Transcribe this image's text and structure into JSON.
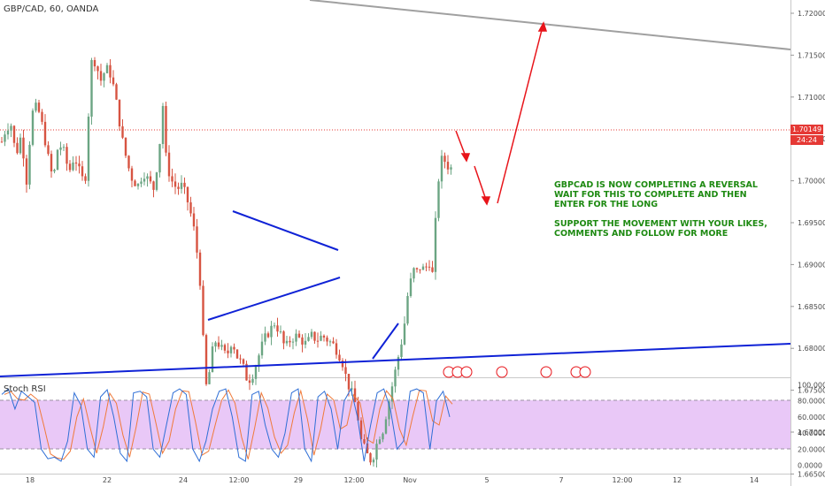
{
  "header": {
    "symbol_title": "GBP/CAD, 60, OANDA"
  },
  "oscillator": {
    "label": "Stoch RSI"
  },
  "annotation": {
    "line1": "GBPCAD IS NOW COMPLETING A REVERSAL",
    "line2": "WAIT FOR THIS TO COMPLETE AND THEN",
    "line3": "ENTER FOR THE LONG",
    "line4": "SUPPORT THE MOVEMENT WITH YOUR LIKES,",
    "line5": "COMMENTS AND FOLLOW FOR MORE"
  },
  "price_tags": {
    "last_price": "1.70149",
    "countdown": "24:24"
  },
  "colors": {
    "up_candle": "#6ba583",
    "down_candle": "#d75442",
    "trendline": "#0f22d6",
    "resistance_line": "#a0a0a0",
    "arrow": "#e8141a",
    "annotation_text": "#1e8a12",
    "stoch_k": "#2f6fd6",
    "stoch_d": "#f07a3a",
    "stoch_band": "#e9c8f7",
    "price_tag_bg": "#e53935"
  },
  "chart_data": [
    {
      "type": "candlestick",
      "title": "GBP/CAD, 60, OANDA",
      "y_axis": {
        "ticks": [
          "1.72000",
          "1.71500",
          "1.71000",
          "1.70500",
          "1.70000",
          "1.69500",
          "1.69000",
          "1.68500",
          "1.68000",
          "1.67500",
          "1.67000",
          "1.66500"
        ],
        "range": [
          1.6635,
          1.722
        ],
        "side": "right"
      },
      "x_axis": {
        "ticks": [
          "18",
          "22",
          "24",
          "12:00",
          "29",
          "12:00",
          "Nov",
          "5",
          "7",
          "12:00",
          "12",
          "14"
        ]
      },
      "last_price": 1.70149,
      "price_path": [
        [
          0,
          1.704
        ],
        [
          6,
          1.706
        ],
        [
          12,
          1.707
        ],
        [
          18,
          1.703
        ],
        [
          24,
          1.7055
        ],
        [
          30,
          1.7
        ],
        [
          36,
          1.708
        ],
        [
          42,
          1.709
        ],
        [
          48,
          1.7065
        ],
        [
          54,
          1.703
        ],
        [
          60,
          1.7
        ],
        [
          66,
          1.7045
        ],
        [
          72,
          1.7035
        ],
        [
          78,
          1.701
        ],
        [
          84,
          1.703
        ],
        [
          90,
          1.701
        ],
        [
          96,
          1.6995
        ],
        [
          100,
          1.708
        ],
        [
          104,
          1.715
        ],
        [
          108,
          1.714
        ],
        [
          114,
          1.712
        ],
        [
          120,
          1.7135
        ],
        [
          126,
          1.7125
        ],
        [
          132,
          1.709
        ],
        [
          138,
          1.705
        ],
        [
          144,
          1.702
        ],
        [
          150,
          1.7
        ],
        [
          156,
          1.6995
        ],
        [
          162,
          1.701
        ],
        [
          168,
          1.7
        ],
        [
          174,
          1.699
        ],
        [
          180,
          1.704
        ],
        [
          184,
          1.709
        ],
        [
          188,
          1.702
        ],
        [
          194,
          1.7
        ],
        [
          200,
          1.699
        ],
        [
          206,
          1.6995
        ],
        [
          212,
          1.6975
        ],
        [
          218,
          1.695
        ],
        [
          222,
          1.692
        ],
        [
          226,
          1.688
        ],
        [
          230,
          1.68
        ],
        [
          234,
          1.674
        ],
        [
          238,
          1.679
        ],
        [
          244,
          1.681
        ],
        [
          250,
          1.68
        ],
        [
          256,
          1.679
        ],
        [
          262,
          1.681
        ],
        [
          268,
          1.679
        ],
        [
          274,
          1.678
        ],
        [
          280,
          1.676
        ],
        [
          286,
          1.677
        ],
        [
          292,
          1.679
        ],
        [
          298,
          1.681
        ],
        [
          304,
          1.682
        ],
        [
          310,
          1.683
        ],
        [
          316,
          1.682
        ],
        [
          322,
          1.68
        ],
        [
          328,
          1.681
        ],
        [
          334,
          1.6815
        ],
        [
          340,
          1.681
        ],
        [
          346,
          1.6805
        ],
        [
          352,
          1.6815
        ],
        [
          358,
          1.681
        ],
        [
          364,
          1.6815
        ],
        [
          370,
          1.681
        ],
        [
          376,
          1.6805
        ],
        [
          382,
          1.6795
        ],
        [
          388,
          1.678
        ],
        [
          392,
          1.676
        ],
        [
          396,
          1.675
        ],
        [
          400,
          1.674
        ],
        [
          404,
          1.672
        ],
        [
          408,
          1.669
        ],
        [
          412,
          1.668
        ],
        [
          416,
          1.667
        ],
        [
          420,
          1.6665
        ],
        [
          424,
          1.668
        ],
        [
          428,
          1.6695
        ],
        [
          432,
          1.67
        ],
        [
          436,
          1.672
        ],
        [
          440,
          1.674
        ],
        [
          444,
          1.676
        ],
        [
          448,
          1.678
        ],
        [
          452,
          1.68
        ],
        [
          456,
          1.682
        ],
        [
          460,
          1.686
        ],
        [
          464,
          1.688
        ],
        [
          468,
          1.6895
        ],
        [
          472,
          1.689
        ],
        [
          476,
          1.69
        ],
        [
          480,
          1.689
        ],
        [
          484,
          1.691
        ],
        [
          488,
          1.688
        ],
        [
          492,
          1.695
        ],
        [
          496,
          1.701
        ],
        [
          500,
          1.703
        ],
        [
          504,
          1.702
        ],
        [
          508,
          1.7015
        ]
      ]
    },
    {
      "type": "line",
      "title": "Stoch RSI",
      "y_axis": {
        "ticks": [
          "100.0000",
          "80.0000",
          "60.0000",
          "40.0000",
          "20.0000",
          "0.0000"
        ],
        "range": [
          0,
          100
        ]
      },
      "bands": [
        20,
        80
      ],
      "series": [
        {
          "values": [
            88,
            95,
            70,
            92,
            85,
            78,
            20,
            8,
            10,
            5,
            30,
            90,
            75,
            20,
            10,
            85,
            94,
            60,
            15,
            5,
            90,
            92,
            85,
            20,
            10,
            50,
            90,
            95,
            88,
            20,
            5,
            30,
            70,
            92,
            95,
            60,
            10,
            5,
            88,
            92,
            50,
            20,
            10,
            40,
            90,
            95,
            20,
            5,
            85,
            92,
            70,
            20,
            80,
            95,
            60,
            5,
            50,
            90,
            95,
            70,
            20,
            30,
            92,
            95,
            90,
            20,
            80,
            92,
            60
          ]
        }
      ]
    }
  ]
}
